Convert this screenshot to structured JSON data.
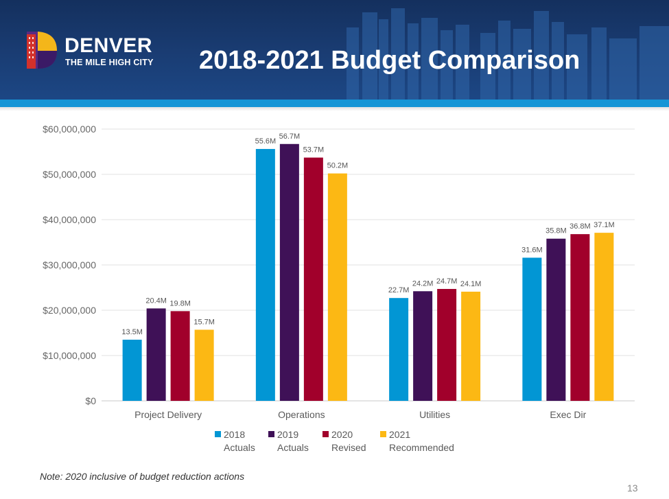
{
  "header": {
    "logo_name": "DENVER",
    "logo_tagline": "THE MILE HIGH CITY",
    "title": "2018-2021 Budget Comparison"
  },
  "chart_data": {
    "type": "bar",
    "categories": [
      "Project Delivery",
      "Operations",
      "Utilities",
      "Exec Dir"
    ],
    "series": [
      {
        "name": "2018 Actuals",
        "name_lines": [
          "2018",
          "Actuals"
        ],
        "color": "#0296d4",
        "values": [
          13500000,
          55600000,
          22700000,
          31600000
        ],
        "labels": [
          "13.5M",
          "55.6M",
          "22.7M",
          "31.6M"
        ]
      },
      {
        "name": "2019 Actuals",
        "name_lines": [
          "2019",
          "Actuals"
        ],
        "color": "#3f1157",
        "values": [
          20400000,
          56700000,
          24200000,
          35800000
        ],
        "labels": [
          "20.4M",
          "56.7M",
          "24.2M",
          "35.8M"
        ]
      },
      {
        "name": "2020 Revised",
        "name_lines": [
          "2020",
          "Revised"
        ],
        "color": "#a1002b",
        "values": [
          19800000,
          53700000,
          24700000,
          36800000
        ],
        "labels": [
          "19.8M",
          "53.7M",
          "24.7M",
          "36.8M"
        ]
      },
      {
        "name": "2021 Recommended",
        "name_lines": [
          "2021",
          "Recommended"
        ],
        "color": "#fcb814",
        "values": [
          15700000,
          50200000,
          24100000,
          37100000
        ],
        "labels": [
          "15.7M",
          "50.2M",
          "24.1M",
          "37.1M"
        ]
      }
    ],
    "ylim": [
      0,
      60000000
    ],
    "yticks": [
      0,
      10000000,
      20000000,
      30000000,
      40000000,
      50000000,
      60000000
    ],
    "ytick_labels": [
      "$0",
      "$10,000,000",
      "$20,000,000",
      "$30,000,000",
      "$40,000,000",
      "$50,000,000",
      "$60,000,000"
    ],
    "grid": true,
    "legend": "bottom"
  },
  "note": "Note:  2020 inclusive of budget reduction actions",
  "page_number": "13"
}
